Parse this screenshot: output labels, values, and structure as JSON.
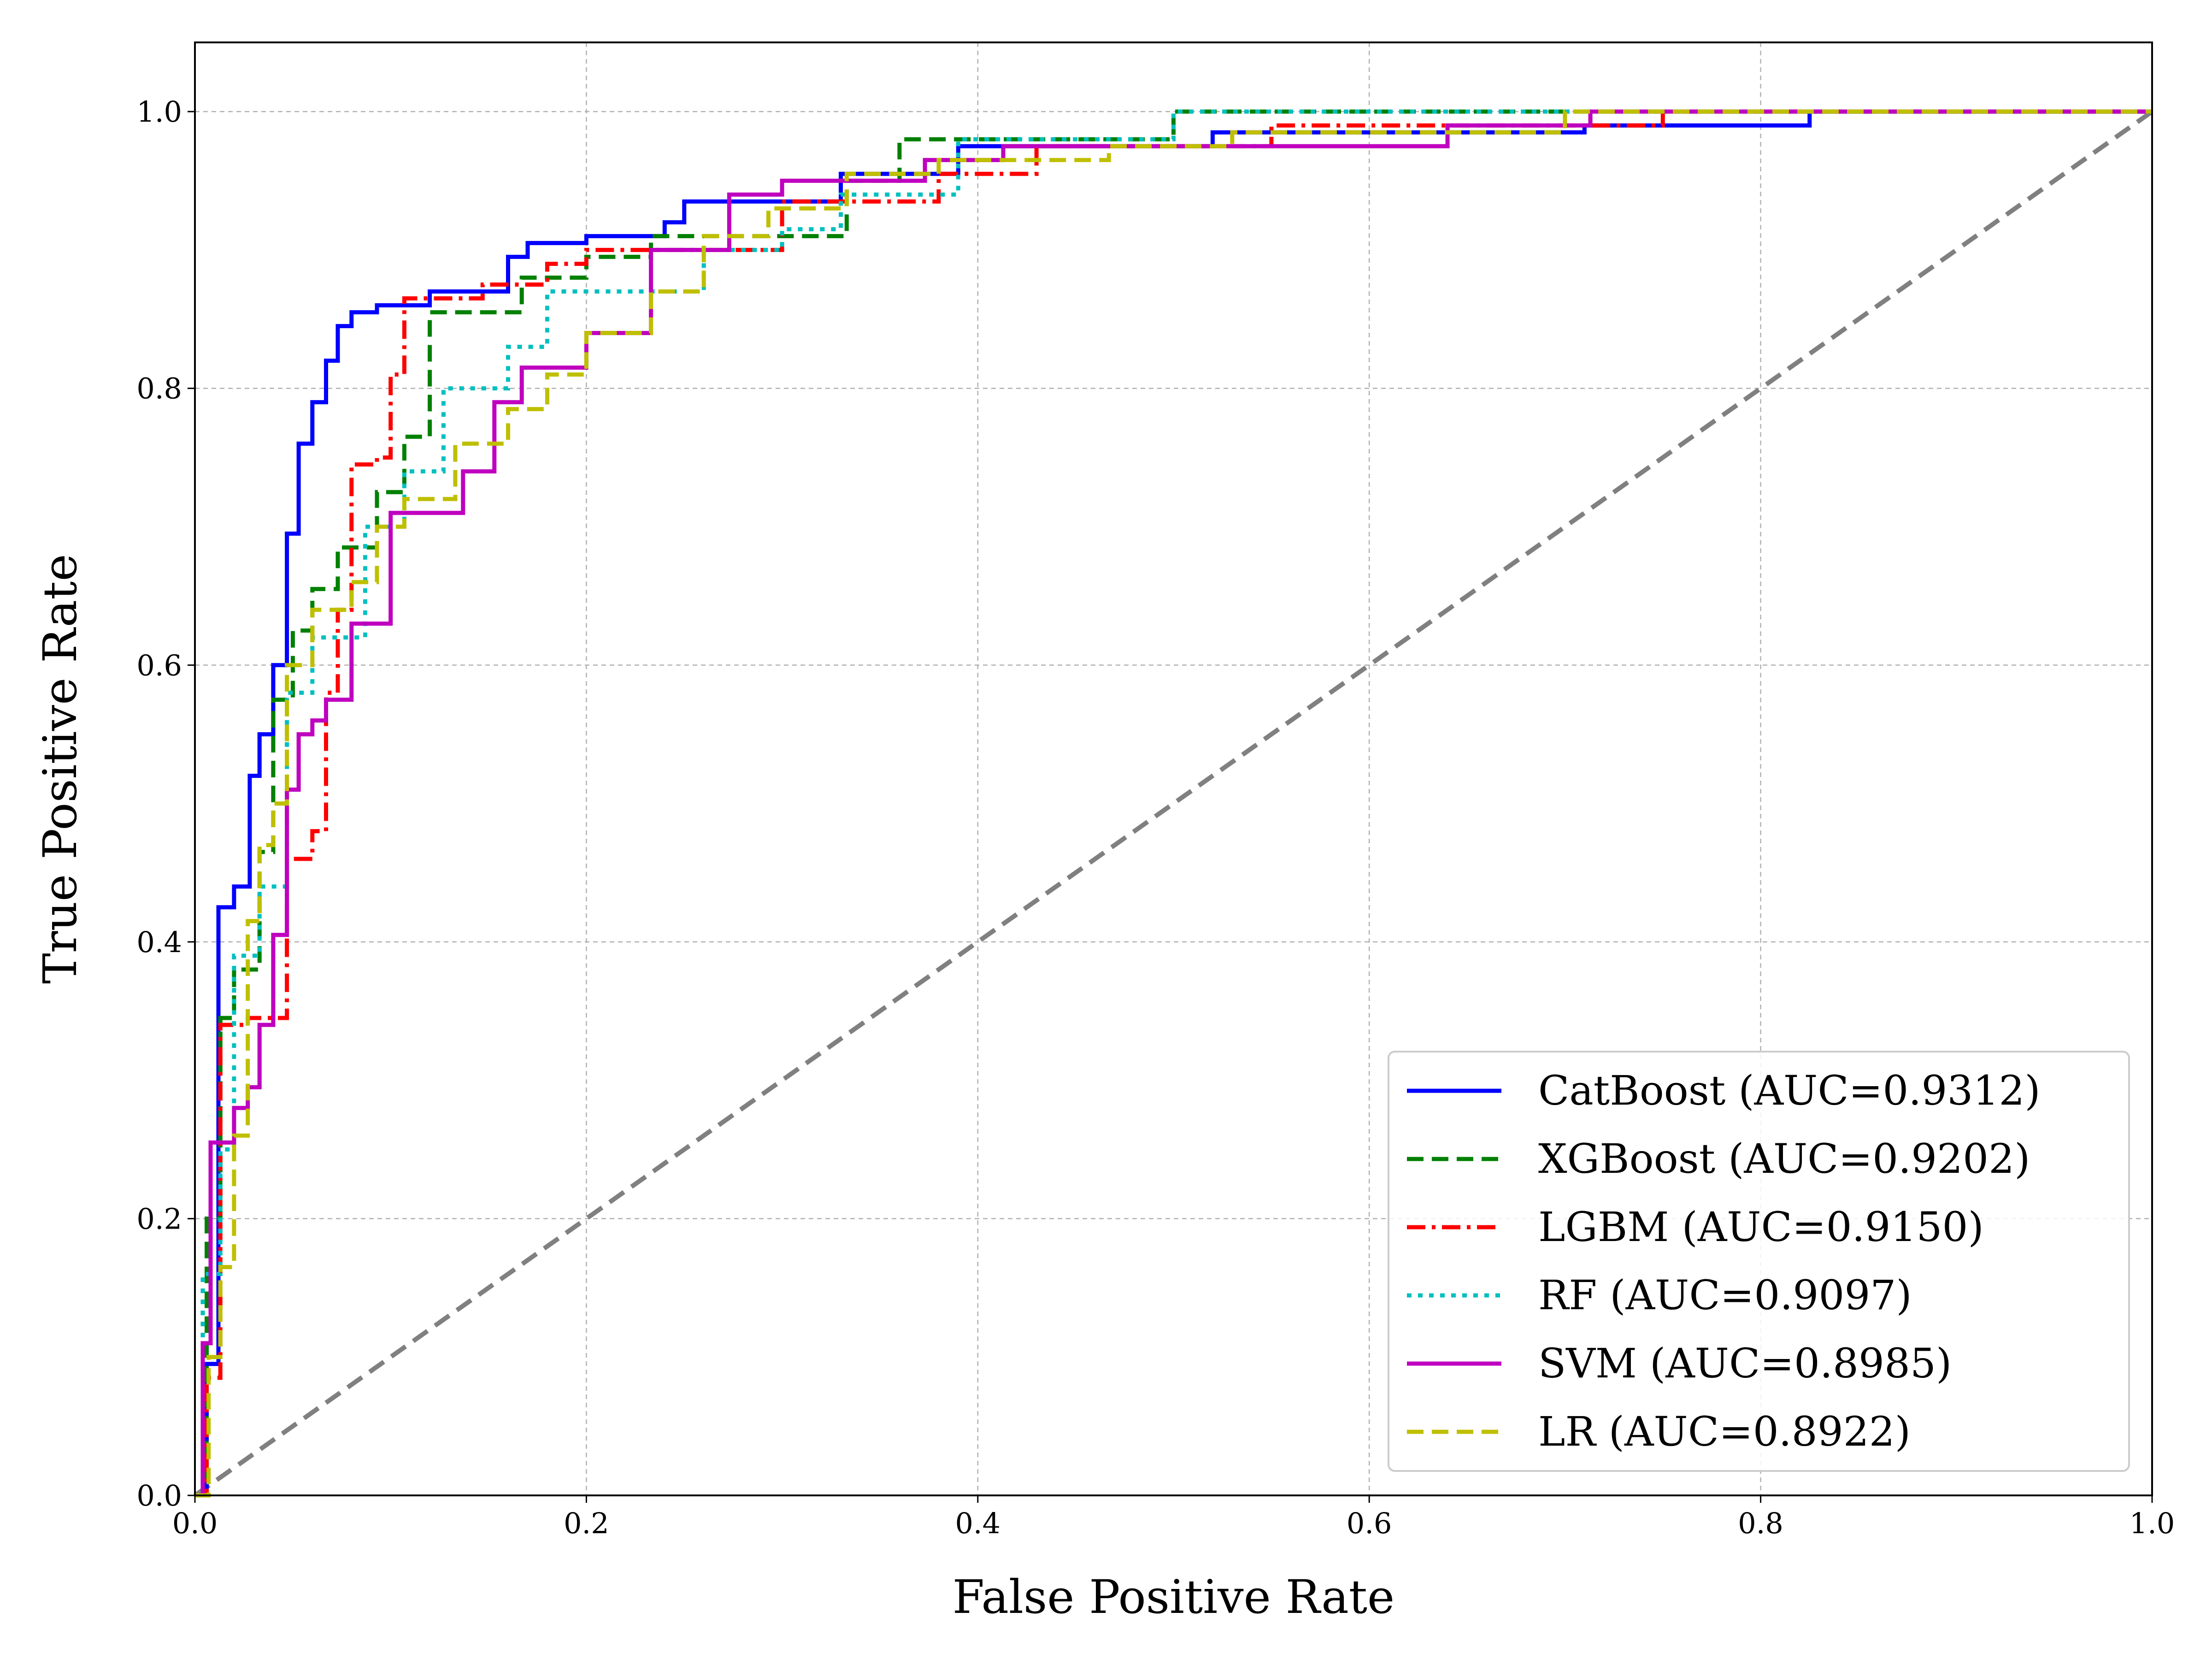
{
  "chart_data": {
    "type": "line",
    "title": "",
    "xlabel": "False Positive Rate",
    "ylabel": "True Positive Rate",
    "xlim": [
      0.0,
      1.0
    ],
    "ylim": [
      0.0,
      1.05
    ],
    "xticks": [
      "0.0",
      "0.2",
      "0.4",
      "0.6",
      "0.8",
      "1.0"
    ],
    "yticks": [
      "0.0",
      "0.2",
      "0.4",
      "0.6",
      "0.8",
      "1.0"
    ],
    "grid": true,
    "legend_position": "lower-right",
    "reference_line": {
      "x": [
        0,
        1
      ],
      "y": [
        0,
        1
      ],
      "color": "#808080",
      "style": "dashed"
    },
    "series": [
      {
        "name": "CatBoost (AUC=0.9312)",
        "color": "#0000ff",
        "style": "solid",
        "x": [
          0,
          0.006,
          0.006,
          0.012,
          0.012,
          0.02,
          0.02,
          0.028,
          0.028,
          0.033,
          0.033,
          0.04,
          0.04,
          0.047,
          0.047,
          0.053,
          0.053,
          0.06,
          0.06,
          0.067,
          0.067,
          0.073,
          0.073,
          0.08,
          0.08,
          0.093,
          0.093,
          0.12,
          0.12,
          0.16,
          0.16,
          0.17,
          0.17,
          0.2,
          0.2,
          0.24,
          0.24,
          0.25,
          0.25,
          0.33,
          0.33,
          0.39,
          0.39,
          0.52,
          0.52,
          0.71,
          0.71,
          0.825,
          0.825,
          1.0
        ],
        "y": [
          0,
          0,
          0.095,
          0.095,
          0.425,
          0.425,
          0.44,
          0.44,
          0.52,
          0.52,
          0.55,
          0.55,
          0.6,
          0.6,
          0.695,
          0.695,
          0.76,
          0.76,
          0.79,
          0.79,
          0.82,
          0.82,
          0.845,
          0.845,
          0.855,
          0.855,
          0.86,
          0.86,
          0.87,
          0.87,
          0.895,
          0.895,
          0.905,
          0.905,
          0.91,
          0.91,
          0.92,
          0.92,
          0.935,
          0.935,
          0.955,
          0.955,
          0.975,
          0.975,
          0.985,
          0.985,
          0.99,
          0.99,
          1.0,
          1.0
        ]
      },
      {
        "name": "XGBoost (AUC=0.9202)",
        "color": "#008000",
        "style": "dashed",
        "x": [
          0,
          0.006,
          0.006,
          0.013,
          0.013,
          0.02,
          0.02,
          0.033,
          0.033,
          0.04,
          0.04,
          0.05,
          0.05,
          0.06,
          0.06,
          0.073,
          0.073,
          0.093,
          0.093,
          0.107,
          0.107,
          0.12,
          0.12,
          0.167,
          0.167,
          0.2,
          0.2,
          0.233,
          0.233,
          0.333,
          0.333,
          0.36,
          0.36,
          0.5,
          0.5,
          1.0
        ],
        "y": [
          0,
          0,
          0.2,
          0.2,
          0.345,
          0.345,
          0.38,
          0.38,
          0.465,
          0.465,
          0.575,
          0.575,
          0.625,
          0.625,
          0.655,
          0.655,
          0.685,
          0.685,
          0.725,
          0.725,
          0.765,
          0.765,
          0.855,
          0.855,
          0.88,
          0.88,
          0.895,
          0.895,
          0.91,
          0.91,
          0.95,
          0.95,
          0.98,
          0.98,
          1.0,
          1.0
        ]
      },
      {
        "name": "LGBM (AUC=0.9150)",
        "color": "#ff0000",
        "style": "dashdot",
        "x": [
          0,
          0.006,
          0.006,
          0.013,
          0.013,
          0.027,
          0.027,
          0.047,
          0.047,
          0.06,
          0.06,
          0.067,
          0.067,
          0.073,
          0.073,
          0.08,
          0.08,
          0.093,
          0.093,
          0.1,
          0.1,
          0.107,
          0.107,
          0.147,
          0.147,
          0.18,
          0.18,
          0.2,
          0.2,
          0.3,
          0.3,
          0.38,
          0.38,
          0.43,
          0.43,
          0.55,
          0.55,
          0.75,
          0.75,
          0.8,
          0.8,
          1.0
        ],
        "y": [
          0,
          0,
          0.085,
          0.085,
          0.34,
          0.34,
          0.345,
          0.345,
          0.46,
          0.46,
          0.48,
          0.48,
          0.58,
          0.58,
          0.64,
          0.64,
          0.745,
          0.745,
          0.75,
          0.75,
          0.81,
          0.81,
          0.865,
          0.865,
          0.875,
          0.875,
          0.89,
          0.89,
          0.9,
          0.9,
          0.935,
          0.935,
          0.955,
          0.955,
          0.975,
          0.975,
          0.99,
          0.99,
          1.0,
          1.0,
          1.0,
          1.0
        ]
      },
      {
        "name": "RF (AUC=0.9097)",
        "color": "#00bfbf",
        "style": "dotted",
        "x": [
          0,
          0.004,
          0.004,
          0.013,
          0.013,
          0.02,
          0.02,
          0.033,
          0.033,
          0.047,
          0.047,
          0.06,
          0.06,
          0.087,
          0.087,
          0.107,
          0.107,
          0.127,
          0.127,
          0.16,
          0.16,
          0.18,
          0.18,
          0.26,
          0.26,
          0.3,
          0.3,
          0.33,
          0.33,
          0.39,
          0.39,
          0.5,
          0.5,
          1.0
        ],
        "y": [
          0,
          0,
          0.16,
          0.16,
          0.25,
          0.25,
          0.39,
          0.39,
          0.44,
          0.44,
          0.58,
          0.58,
          0.62,
          0.62,
          0.7,
          0.7,
          0.74,
          0.74,
          0.8,
          0.8,
          0.83,
          0.83,
          0.87,
          0.87,
          0.9,
          0.9,
          0.915,
          0.915,
          0.94,
          0.94,
          0.98,
          0.98,
          1.0,
          1.0
        ]
      },
      {
        "name": "SVM (AUC=0.8985)",
        "color": "#bf00bf",
        "style": "solid",
        "x": [
          0,
          0.004,
          0.004,
          0.008,
          0.008,
          0.02,
          0.02,
          0.027,
          0.027,
          0.033,
          0.033,
          0.04,
          0.04,
          0.047,
          0.047,
          0.053,
          0.053,
          0.06,
          0.06,
          0.067,
          0.067,
          0.073,
          0.073,
          0.08,
          0.08,
          0.1,
          0.1,
          0.137,
          0.137,
          0.153,
          0.153,
          0.167,
          0.167,
          0.2,
          0.2,
          0.233,
          0.233,
          0.273,
          0.273,
          0.3,
          0.3,
          0.373,
          0.373,
          0.413,
          0.413,
          0.64,
          0.64,
          0.713,
          0.713,
          1.0
        ],
        "y": [
          0,
          0,
          0.11,
          0.11,
          0.255,
          0.255,
          0.28,
          0.28,
          0.295,
          0.295,
          0.34,
          0.34,
          0.405,
          0.405,
          0.51,
          0.51,
          0.55,
          0.55,
          0.56,
          0.56,
          0.575,
          0.575,
          0.575,
          0.575,
          0.63,
          0.63,
          0.71,
          0.71,
          0.74,
          0.74,
          0.79,
          0.79,
          0.815,
          0.815,
          0.84,
          0.84,
          0.9,
          0.9,
          0.94,
          0.94,
          0.95,
          0.95,
          0.965,
          0.965,
          0.975,
          0.975,
          0.99,
          0.99,
          1.0,
          1.0
        ]
      },
      {
        "name": "LR (AUC=0.8922)",
        "color": "#bfbf00",
        "style": "dashed",
        "x": [
          0,
          0.007,
          0.007,
          0.013,
          0.013,
          0.02,
          0.02,
          0.027,
          0.027,
          0.033,
          0.033,
          0.04,
          0.04,
          0.047,
          0.047,
          0.06,
          0.06,
          0.08,
          0.08,
          0.093,
          0.093,
          0.107,
          0.107,
          0.133,
          0.133,
          0.16,
          0.16,
          0.18,
          0.18,
          0.2,
          0.2,
          0.233,
          0.233,
          0.26,
          0.26,
          0.293,
          0.293,
          0.333,
          0.333,
          0.38,
          0.38,
          0.467,
          0.467,
          0.53,
          0.53,
          0.7,
          0.7,
          1.0
        ],
        "y": [
          0,
          0,
          0.1,
          0.1,
          0.165,
          0.165,
          0.26,
          0.26,
          0.415,
          0.415,
          0.47,
          0.47,
          0.5,
          0.5,
          0.6,
          0.6,
          0.64,
          0.64,
          0.66,
          0.66,
          0.7,
          0.7,
          0.72,
          0.72,
          0.76,
          0.76,
          0.785,
          0.785,
          0.81,
          0.81,
          0.84,
          0.84,
          0.87,
          0.87,
          0.91,
          0.91,
          0.93,
          0.93,
          0.955,
          0.955,
          0.965,
          0.965,
          0.975,
          0.975,
          0.985,
          0.985,
          1.0,
          1.0
        ]
      }
    ]
  }
}
